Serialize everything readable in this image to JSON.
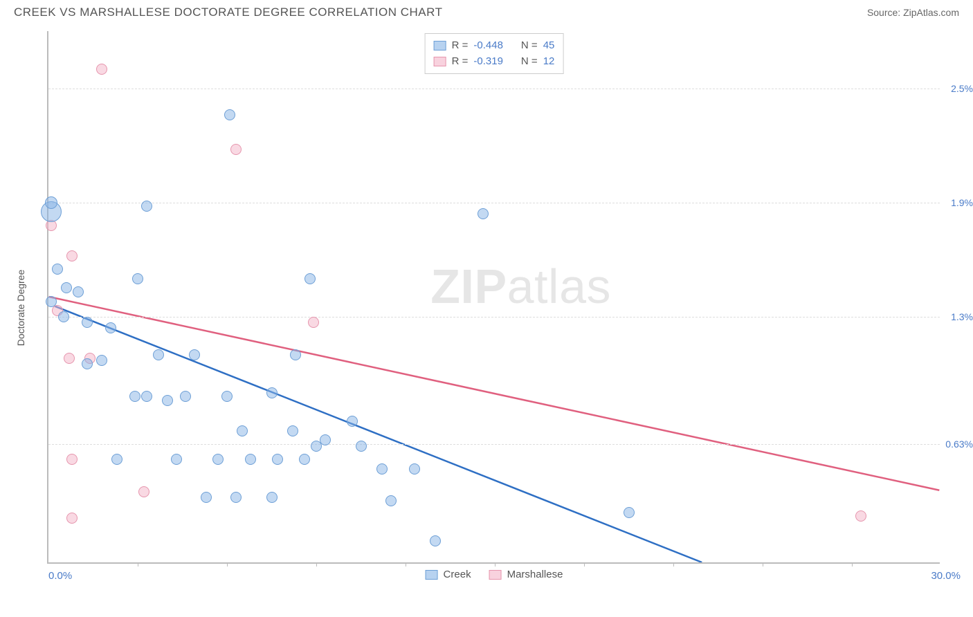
{
  "header": {
    "title": "CREEK VS MARSHALLESE DOCTORATE DEGREE CORRELATION CHART",
    "source_label": "Source: ",
    "source_name": "ZipAtlas.com"
  },
  "chart": {
    "type": "scatter",
    "y_axis_title": "Doctorate Degree",
    "xlim": [
      0.0,
      30.0
    ],
    "ylim": [
      0.0,
      2.8
    ],
    "x_min_label": "0.0%",
    "x_max_label": "30.0%",
    "y_ticks": [
      0.63,
      1.3,
      1.9,
      2.5
    ],
    "y_tick_labels": [
      "0.63%",
      "1.3%",
      "1.9%",
      "2.5%"
    ],
    "x_ticks": [
      3.0,
      6.0,
      9.0,
      12.0,
      15.0,
      18.0,
      21.0,
      24.0,
      27.0
    ],
    "background_color": "#ffffff",
    "grid_color": "#dddddd",
    "axis_color": "#bbbbbb",
    "watermark": {
      "bold": "ZIP",
      "rest": "atlas"
    },
    "series": {
      "creek": {
        "label": "Creek",
        "color_fill": "rgba(135,180,230,0.5)",
        "color_stroke": "#6d9fd6",
        "trend_color": "#2e6fc4",
        "trend_width": 2.5,
        "r_value": "-0.448",
        "n_value": "45",
        "trend": {
          "x1": 0.2,
          "y1": 1.35,
          "x2": 22.0,
          "y2": 0.0
        },
        "points": [
          {
            "x": 0.1,
            "y": 1.85,
            "r": 15
          },
          {
            "x": 0.1,
            "y": 1.9,
            "r": 9
          },
          {
            "x": 0.3,
            "y": 1.55,
            "r": 8
          },
          {
            "x": 3.3,
            "y": 1.88,
            "r": 8
          },
          {
            "x": 6.1,
            "y": 2.36,
            "r": 8
          },
          {
            "x": 14.6,
            "y": 1.84,
            "r": 8
          },
          {
            "x": 0.6,
            "y": 1.45,
            "r": 8
          },
          {
            "x": 1.0,
            "y": 1.43,
            "r": 8
          },
          {
            "x": 3.0,
            "y": 1.5,
            "r": 8
          },
          {
            "x": 0.5,
            "y": 1.3,
            "r": 8
          },
          {
            "x": 1.3,
            "y": 1.27,
            "r": 8
          },
          {
            "x": 2.1,
            "y": 1.24,
            "r": 8
          },
          {
            "x": 8.8,
            "y": 1.5,
            "r": 8
          },
          {
            "x": 1.3,
            "y": 1.05,
            "r": 8
          },
          {
            "x": 3.7,
            "y": 1.1,
            "r": 8
          },
          {
            "x": 8.3,
            "y": 1.1,
            "r": 8
          },
          {
            "x": 2.9,
            "y": 0.88,
            "r": 8
          },
          {
            "x": 4.0,
            "y": 0.86,
            "r": 8
          },
          {
            "x": 4.6,
            "y": 0.88,
            "r": 8
          },
          {
            "x": 6.0,
            "y": 0.88,
            "r": 8
          },
          {
            "x": 7.5,
            "y": 0.9,
            "r": 8
          },
          {
            "x": 6.5,
            "y": 0.7,
            "r": 8
          },
          {
            "x": 8.2,
            "y": 0.7,
            "r": 8
          },
          {
            "x": 9.3,
            "y": 0.65,
            "r": 8
          },
          {
            "x": 10.2,
            "y": 0.75,
            "r": 8
          },
          {
            "x": 2.3,
            "y": 0.55,
            "r": 8
          },
          {
            "x": 4.3,
            "y": 0.55,
            "r": 8
          },
          {
            "x": 5.7,
            "y": 0.55,
            "r": 8
          },
          {
            "x": 6.8,
            "y": 0.55,
            "r": 8
          },
          {
            "x": 7.7,
            "y": 0.55,
            "r": 8
          },
          {
            "x": 8.6,
            "y": 0.55,
            "r": 8
          },
          {
            "x": 11.2,
            "y": 0.5,
            "r": 8
          },
          {
            "x": 12.3,
            "y": 0.5,
            "r": 8
          },
          {
            "x": 5.3,
            "y": 0.35,
            "r": 8
          },
          {
            "x": 6.3,
            "y": 0.35,
            "r": 8
          },
          {
            "x": 11.5,
            "y": 0.33,
            "r": 8
          },
          {
            "x": 9.0,
            "y": 0.62,
            "r": 8
          },
          {
            "x": 10.5,
            "y": 0.62,
            "r": 8
          },
          {
            "x": 13.0,
            "y": 0.12,
            "r": 8
          },
          {
            "x": 19.5,
            "y": 0.27,
            "r": 8
          },
          {
            "x": 3.3,
            "y": 0.88,
            "r": 8
          },
          {
            "x": 4.9,
            "y": 1.1,
            "r": 8
          },
          {
            "x": 0.1,
            "y": 1.38,
            "r": 8
          },
          {
            "x": 1.8,
            "y": 1.07,
            "r": 8
          },
          {
            "x": 7.5,
            "y": 0.35,
            "r": 8
          }
        ]
      },
      "marshallese": {
        "label": "Marshallese",
        "color_fill": "rgba(244,180,200,0.5)",
        "color_stroke": "#e695ad",
        "trend_color": "#e0607f",
        "trend_width": 2.5,
        "r_value": "-0.319",
        "n_value": "12",
        "trend": {
          "x1": 0.0,
          "y1": 1.4,
          "x2": 30.0,
          "y2": 0.38
        },
        "points": [
          {
            "x": 1.8,
            "y": 2.6,
            "r": 8
          },
          {
            "x": 6.3,
            "y": 2.18,
            "r": 8
          },
          {
            "x": 0.1,
            "y": 1.78,
            "r": 8
          },
          {
            "x": 0.8,
            "y": 1.62,
            "r": 8
          },
          {
            "x": 0.3,
            "y": 1.33,
            "r": 8
          },
          {
            "x": 8.9,
            "y": 1.27,
            "r": 8
          },
          {
            "x": 0.7,
            "y": 1.08,
            "r": 8
          },
          {
            "x": 1.4,
            "y": 1.08,
            "r": 8
          },
          {
            "x": 0.8,
            "y": 0.55,
            "r": 8
          },
          {
            "x": 3.2,
            "y": 0.38,
            "r": 8
          },
          {
            "x": 0.8,
            "y": 0.24,
            "r": 8
          },
          {
            "x": 27.3,
            "y": 0.25,
            "r": 8
          }
        ]
      }
    },
    "legend_labels": {
      "r_prefix": "R = ",
      "n_prefix": "N = "
    }
  }
}
